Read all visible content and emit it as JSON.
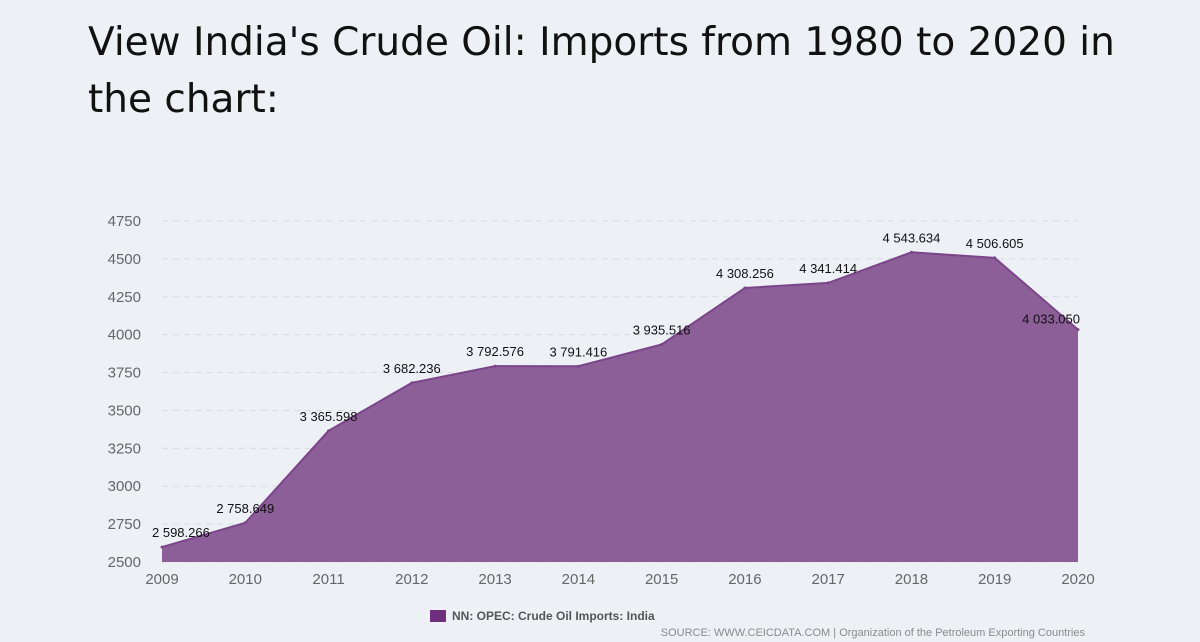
{
  "page": {
    "title": "View India's Crude Oil: Imports from 1980 to 2020 in the chart:"
  },
  "chart_data": {
    "type": "area",
    "x": [
      "2009",
      "2010",
      "2011",
      "2012",
      "2013",
      "2014",
      "2015",
      "2016",
      "2017",
      "2018",
      "2019",
      "2020"
    ],
    "series": [
      {
        "name": "NN: OPEC: Crude Oil Imports: India",
        "values": [
          2598.266,
          2758.649,
          3365.598,
          3682.236,
          3792.576,
          3791.416,
          3935.516,
          4308.256,
          4341.414,
          4543.634,
          4506.605,
          4033.05
        ],
        "labels": [
          "2 598.266",
          "2 758.649",
          "3 365.598",
          "3 682.236",
          "3 792.576",
          "3 791.416",
          "3 935.516",
          "4 308.256",
          "4 341.414",
          "4 543.634",
          "4 506.605",
          "4 033.050"
        ]
      }
    ],
    "yticks": [
      2500,
      2750,
      3000,
      3250,
      3500,
      3750,
      4000,
      4250,
      4500,
      4750
    ],
    "ylim": [
      2500,
      4750
    ],
    "grid": true,
    "legend": "bottom-center",
    "source": "SOURCE: WWW.CEICDATA.COM | Organization of the Petroleum Exporting Countries",
    "colors": {
      "area": "#8d5f99",
      "line": "#7a4589",
      "legend_swatch": "#6e2f7f",
      "grid": "#d6dbe3"
    }
  }
}
